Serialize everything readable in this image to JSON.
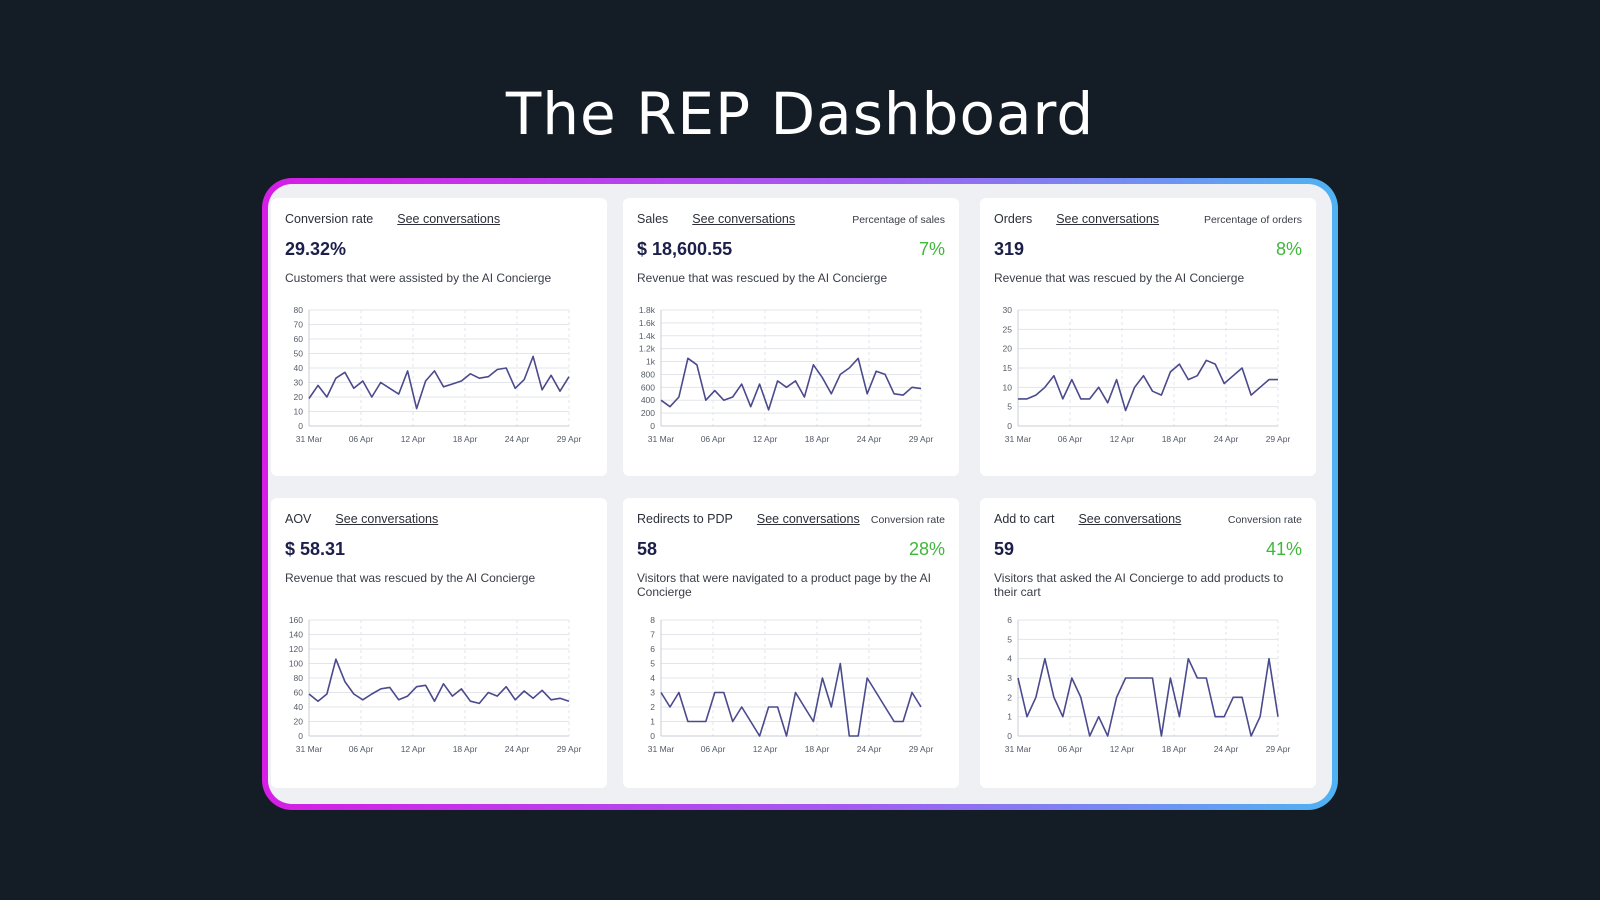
{
  "page": {
    "title": "The REP Dashboard"
  },
  "cards": [
    {
      "id": "conversion",
      "name": "Conversion rate",
      "link": "See conversations",
      "extra_label": "",
      "value": "29.32%",
      "pct": "",
      "description": "Customers that were assisted by the AI Concierge",
      "chart_data": {
        "type": "line",
        "title": "Conversion rate",
        "xlabel": "",
        "ylabel": "",
        "ylim": [
          0,
          80
        ],
        "y_ticks": [
          "0",
          "10",
          "20",
          "30",
          "40",
          "50",
          "60",
          "70",
          "80"
        ],
        "x_ticks": [
          "31 Mar",
          "06 Apr",
          "12 Apr",
          "18 Apr",
          "24 Apr",
          "29 Apr"
        ],
        "values": [
          19,
          28,
          20,
          33,
          37,
          26,
          31,
          20,
          30,
          26,
          22,
          38,
          12,
          31,
          38,
          27,
          29,
          31,
          36,
          33,
          34,
          39,
          40,
          26,
          32,
          48,
          25,
          35,
          24,
          34
        ],
        "color": "#4a4a8c"
      }
    },
    {
      "id": "sales",
      "name": "Sales",
      "link": "See conversations",
      "extra_label": "Percentage of sales",
      "value": "$ 18,600.55",
      "pct": "7%",
      "description": "Revenue that was rescued by the AI Concierge",
      "chart_data": {
        "type": "line",
        "title": "Sales",
        "xlabel": "",
        "ylabel": "",
        "ylim": [
          0,
          1800
        ],
        "y_ticks": [
          "0",
          "200",
          "400",
          "600",
          "800",
          "1k",
          "1.2k",
          "1.4k",
          "1.6k",
          "1.8k"
        ],
        "x_ticks": [
          "31 Mar",
          "06 Apr",
          "12 Apr",
          "18 Apr",
          "24 Apr",
          "29 Apr"
        ],
        "values": [
          400,
          300,
          450,
          1050,
          950,
          400,
          550,
          400,
          450,
          650,
          300,
          650,
          250,
          700,
          600,
          700,
          450,
          950,
          750,
          500,
          800,
          900,
          1050,
          500,
          850,
          800,
          500,
          480,
          600,
          580
        ],
        "color": "#4a4a8c"
      }
    },
    {
      "id": "orders",
      "name": "Orders",
      "link": "See conversations",
      "extra_label": "Percentage of orders",
      "value": "319",
      "pct": "8%",
      "description": "Revenue that was rescued by the AI Concierge",
      "chart_data": {
        "type": "line",
        "title": "Orders",
        "xlabel": "",
        "ylabel": "",
        "ylim": [
          0,
          30
        ],
        "y_ticks": [
          "0",
          "5",
          "10",
          "15",
          "20",
          "25",
          "30"
        ],
        "x_ticks": [
          "31 Mar",
          "06 Apr",
          "12 Apr",
          "18 Apr",
          "24 Apr",
          "29 Apr"
        ],
        "values": [
          7,
          7,
          8,
          10,
          13,
          7,
          12,
          7,
          7,
          10,
          6,
          12,
          4,
          10,
          13,
          9,
          8,
          14,
          16,
          12,
          13,
          17,
          16,
          11,
          13,
          15,
          8,
          10,
          12,
          12
        ],
        "color": "#4a4a8c"
      }
    },
    {
      "id": "aov",
      "name": "AOV",
      "link": "See conversations",
      "extra_label": "",
      "value": "$ 58.31",
      "pct": "",
      "description": "Revenue that was rescued by the AI Concierge",
      "chart_data": {
        "type": "line",
        "title": "AOV",
        "xlabel": "",
        "ylabel": "",
        "ylim": [
          0,
          160
        ],
        "y_ticks": [
          "0",
          "20",
          "40",
          "60",
          "80",
          "100",
          "120",
          "140",
          "160"
        ],
        "x_ticks": [
          "31 Mar",
          "06 Apr",
          "12 Apr",
          "18 Apr",
          "24 Apr",
          "29 Apr"
        ],
        "values": [
          58,
          48,
          58,
          106,
          75,
          58,
          50,
          58,
          65,
          67,
          50,
          55,
          68,
          70,
          48,
          72,
          55,
          65,
          48,
          45,
          60,
          55,
          68,
          50,
          62,
          52,
          63,
          50,
          52,
          48
        ],
        "color": "#4a4a8c"
      }
    },
    {
      "id": "redirects",
      "name": "Redirects to PDP",
      "link": "See conversations",
      "extra_label": "Conversion rate",
      "value": "58",
      "pct": "28%",
      "description": "Visitors that were navigated to a product page by the AI Concierge",
      "chart_data": {
        "type": "line",
        "title": "Redirects to PDP",
        "xlabel": "",
        "ylabel": "",
        "ylim": [
          0,
          8
        ],
        "y_ticks": [
          "0",
          "1",
          "2",
          "3",
          "4",
          "5",
          "6",
          "7",
          "8"
        ],
        "x_ticks": [
          "31 Mar",
          "06 Apr",
          "12 Apr",
          "18 Apr",
          "24 Apr",
          "29 Apr"
        ],
        "values": [
          3,
          2,
          3,
          1,
          1,
          1,
          3,
          3,
          1,
          2,
          1,
          0,
          2,
          2,
          0,
          3,
          2,
          1,
          4,
          2,
          5,
          0,
          0,
          4,
          3,
          2,
          1,
          1,
          3,
          2
        ],
        "color": "#4a4a8c"
      }
    },
    {
      "id": "addtocart",
      "name": "Add to cart",
      "link": "See conversations",
      "extra_label": "Conversion rate",
      "value": "59",
      "pct": "41%",
      "description": "Visitors that asked the AI Concierge to add products to their cart",
      "chart_data": {
        "type": "line",
        "title": "Add to cart",
        "xlabel": "",
        "ylabel": "",
        "ylim": [
          0,
          6
        ],
        "y_ticks": [
          "0",
          "1",
          "2",
          "3",
          "4",
          "5",
          "6"
        ],
        "x_ticks": [
          "31 Mar",
          "06 Apr",
          "12 Apr",
          "18 Apr",
          "24 Apr",
          "29 Apr"
        ],
        "values": [
          3,
          1,
          2,
          4,
          2,
          1,
          3,
          2,
          0,
          1,
          0,
          2,
          3,
          3,
          3,
          3,
          0,
          3,
          1,
          4,
          3,
          3,
          1,
          1,
          2,
          2,
          0,
          1,
          4,
          1
        ],
        "color": "#4a4a8c"
      }
    }
  ]
}
